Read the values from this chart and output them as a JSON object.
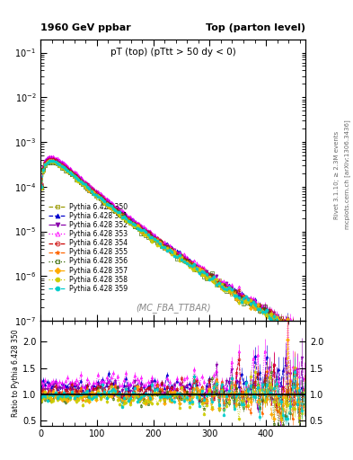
{
  "title_left": "1960 GeV ppbar",
  "title_right": "Top (parton level)",
  "plot_title": "pT (top) (pTtt > 50 dy < 0)",
  "subtitle": "(MC_FBA_TTBAR)",
  "right_label1": "Rivet 3.1.10; ≥ 2.3M events",
  "right_label2": "mcplots.cern.ch [arXiv:1306.3436]",
  "ylabel_ratio": "Ratio to Pythia 6.428 350",
  "xlim": [
    0,
    470
  ],
  "ylim_main": [
    1e-07,
    0.2
  ],
  "ylim_ratio": [
    0.4,
    2.4
  ],
  "yticks_ratio": [
    0.5,
    1.0,
    1.5,
    2.0
  ],
  "series": [
    {
      "label": "Pythia 6.428 350",
      "color": "#999900",
      "marker": "s",
      "linestyle": "--",
      "filled": false,
      "ratio_mean": 1.0
    },
    {
      "label": "Pythia 6.428 351",
      "color": "#0000cc",
      "marker": "^",
      "linestyle": "--",
      "filled": true,
      "ratio_mean": 1.15
    },
    {
      "label": "Pythia 6.428 352",
      "color": "#8800aa",
      "marker": "v",
      "linestyle": "-.",
      "filled": true,
      "ratio_mean": 1.1
    },
    {
      "label": "Pythia 6.428 353",
      "color": "#ff00ff",
      "marker": "^",
      "linestyle": ":",
      "filled": false,
      "ratio_mean": 1.22
    },
    {
      "label": "Pythia 6.428 354",
      "color": "#cc0000",
      "marker": "o",
      "linestyle": "--",
      "filled": false,
      "ratio_mean": 1.05
    },
    {
      "label": "Pythia 6.428 355",
      "color": "#ff6600",
      "marker": "*",
      "linestyle": "--",
      "filled": true,
      "ratio_mean": 0.98
    },
    {
      "label": "Pythia 6.428 356",
      "color": "#336600",
      "marker": "s",
      "linestyle": ":",
      "filled": false,
      "ratio_mean": 0.93
    },
    {
      "label": "Pythia 6.428 357",
      "color": "#ffaa00",
      "marker": "D",
      "linestyle": "--",
      "filled": true,
      "ratio_mean": 0.95
    },
    {
      "label": "Pythia 6.428 358",
      "color": "#cccc00",
      "marker": "o",
      "linestyle": ":",
      "filled": true,
      "ratio_mean": 0.92
    },
    {
      "label": "Pythia 6.428 359",
      "color": "#00cccc",
      "marker": "o",
      "linestyle": "--",
      "filled": true,
      "ratio_mean": 0.96
    }
  ],
  "background_color": "#ffffff"
}
